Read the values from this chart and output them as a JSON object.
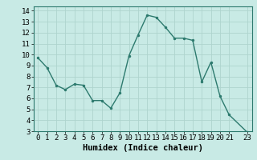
{
  "x": [
    0,
    1,
    2,
    3,
    4,
    5,
    6,
    7,
    8,
    9,
    10,
    11,
    12,
    13,
    14,
    15,
    16,
    17,
    18,
    19,
    20,
    21,
    23
  ],
  "y": [
    9.7,
    8.8,
    7.2,
    6.8,
    7.3,
    7.2,
    5.8,
    5.8,
    5.1,
    6.5,
    9.9,
    11.8,
    13.6,
    13.4,
    12.5,
    11.5,
    11.5,
    11.3,
    7.5,
    9.3,
    6.2,
    4.5,
    2.9
  ],
  "line_color": "#2d7a6e",
  "marker": "o",
  "marker_size": 2.5,
  "bg_color": "#c8eae5",
  "grid_color": "#aed4ce",
  "xlabel": "Humidex (Indice chaleur)",
  "xlim": [
    -0.5,
    23.5
  ],
  "ylim": [
    3,
    14.4
  ],
  "xticks": [
    0,
    1,
    2,
    3,
    4,
    5,
    6,
    7,
    8,
    9,
    10,
    11,
    12,
    13,
    14,
    15,
    16,
    17,
    18,
    19,
    20,
    21,
    23
  ],
  "yticks": [
    3,
    4,
    5,
    6,
    7,
    8,
    9,
    10,
    11,
    12,
    13,
    14
  ],
  "tick_label_size": 6.5,
  "xlabel_size": 7.5,
  "spine_color": "#2d7a6e",
  "line_width": 1.0
}
